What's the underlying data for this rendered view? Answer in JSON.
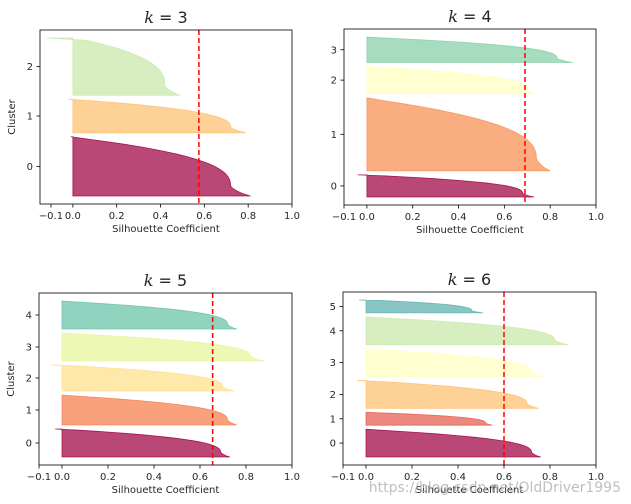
{
  "watermark": "https://blog.csdn.net/OldDriver1995",
  "colors": {
    "mean_line": "#ff0000",
    "frame": "#000000",
    "text": "#262626"
  },
  "chart_data": [
    {
      "type": "silhouette",
      "title_prefix": "k",
      "title_value": "3",
      "xlabel": "Silhouette Coefficient",
      "ylabel": "Cluster",
      "xlim": [
        -0.15,
        1.0
      ],
      "xticks": [
        -0.1,
        0.0,
        0.2,
        0.4,
        0.6,
        0.8,
        1.0
      ],
      "xtick_labels": [
        "−0.1",
        "0.0",
        "0.2",
        "0.4",
        "0.6",
        "0.8",
        "1.0"
      ],
      "ytick_labels": [
        "0",
        "1",
        "2"
      ],
      "mean_silhouette": 0.575,
      "clusters": [
        {
          "label": "0",
          "color": "#9e0142",
          "size": 60,
          "min": -0.01,
          "knee": 0.72,
          "max": 0.81
        },
        {
          "label": "1",
          "color": "#fdbf6f",
          "size": 34,
          "min": -0.02,
          "knee": 0.72,
          "max": 0.79
        },
        {
          "label": "2",
          "color": "#c7e9a8",
          "size": 58,
          "min": -0.12,
          "knee": 0.42,
          "max": 0.49
        }
      ]
    },
    {
      "type": "silhouette",
      "title_prefix": "k",
      "title_value": "4",
      "xlabel": "Silhouette Coefficient",
      "ylabel": "",
      "xlim": [
        -0.1,
        1.0
      ],
      "xticks": [
        -0.1,
        0.0,
        0.2,
        0.4,
        0.6,
        0.8,
        1.0
      ],
      "xtick_labels": [
        "−0.1",
        "0.0",
        "0.2",
        "0.4",
        "0.6",
        "0.8",
        "1.0"
      ],
      "ytick_labels": [
        "0",
        "1",
        "2",
        "3"
      ],
      "mean_silhouette": 0.69,
      "clusters": [
        {
          "label": "0",
          "color": "#9e0142",
          "size": 26,
          "min": -0.04,
          "knee": 0.68,
          "max": 0.73
        },
        {
          "label": "1",
          "color": "#f98e52",
          "size": 86,
          "min": 0.0,
          "knee": 0.74,
          "max": 0.8
        },
        {
          "label": "2",
          "color": "#ffffbe",
          "size": 32,
          "min": 0.0,
          "knee": 0.7,
          "max": 0.74
        },
        {
          "label": "3",
          "color": "#86cfa5",
          "size": 30,
          "min": 0.0,
          "knee": 0.83,
          "max": 0.9
        }
      ]
    },
    {
      "type": "silhouette",
      "title_prefix": "k",
      "title_value": "5",
      "xlabel": "Silhouette Coefficient",
      "ylabel": "Cluster",
      "xlim": [
        -0.1,
        1.0
      ],
      "xticks": [
        -0.1,
        0.0,
        0.2,
        0.4,
        0.6,
        0.8,
        1.0
      ],
      "xtick_labels": [
        "−0.1",
        "0.0",
        "0.2",
        "0.4",
        "0.6",
        "0.8",
        "1.0"
      ],
      "ytick_labels": [
        "0",
        "1",
        "2",
        "3",
        "4"
      ],
      "mean_silhouette": 0.655,
      "clusters": [
        {
          "label": "0",
          "color": "#9e0142",
          "size": 28,
          "min": -0.03,
          "knee": 0.69,
          "max": 0.73
        },
        {
          "label": "1",
          "color": "#f67d4a",
          "size": 30,
          "min": 0.0,
          "knee": 0.72,
          "max": 0.76
        },
        {
          "label": "2",
          "color": "#fee08b",
          "size": 26,
          "min": -0.05,
          "knee": 0.7,
          "max": 0.75
        },
        {
          "label": "3",
          "color": "#e6f598",
          "size": 28,
          "min": 0.0,
          "knee": 0.82,
          "max": 0.88
        },
        {
          "label": "4",
          "color": "#66c2a5",
          "size": 28,
          "min": 0.0,
          "knee": 0.72,
          "max": 0.76
        }
      ]
    },
    {
      "type": "silhouette",
      "title_prefix": "k",
      "title_value": "6",
      "xlabel": "Silhouette Coefficient",
      "ylabel": "",
      "xlim": [
        -0.1,
        1.0
      ],
      "xticks": [
        -0.1,
        0.0,
        0.2,
        0.4,
        0.6,
        0.8,
        1.0
      ],
      "xtick_labels": [
        "−0.1",
        "0.0",
        "0.2",
        "0.4",
        "0.6",
        "0.8",
        "1.0"
      ],
      "ytick_labels": [
        "0",
        "1",
        "2",
        "3",
        "4",
        "5"
      ],
      "mean_silhouette": 0.6,
      "clusters": [
        {
          "label": "0",
          "color": "#9e0142",
          "size": 26,
          "min": 0.0,
          "knee": 0.72,
          "max": 0.76
        },
        {
          "label": "1",
          "color": "#e55a4c",
          "size": 12,
          "min": 0.0,
          "knee": 0.52,
          "max": 0.55
        },
        {
          "label": "2",
          "color": "#fdbf6f",
          "size": 26,
          "min": -0.04,
          "knee": 0.7,
          "max": 0.75
        },
        {
          "label": "3",
          "color": "#ffffbe",
          "size": 26,
          "min": 0.0,
          "knee": 0.72,
          "max": 0.77
        },
        {
          "label": "4",
          "color": "#c7e9a8",
          "size": 26,
          "min": 0.0,
          "knee": 0.82,
          "max": 0.88
        },
        {
          "label": "5",
          "color": "#5aafad",
          "size": 12,
          "min": -0.03,
          "knee": 0.46,
          "max": 0.51
        }
      ]
    }
  ]
}
